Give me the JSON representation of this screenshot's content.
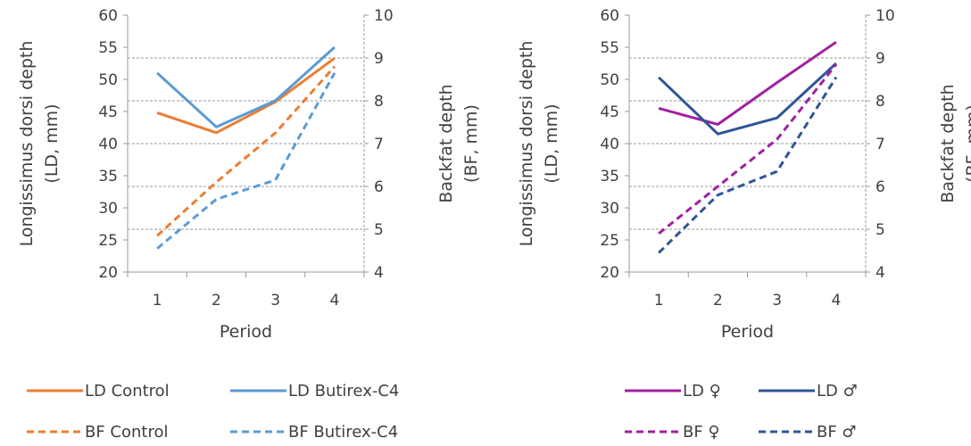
{
  "chart_data": [
    {
      "type": "line",
      "x": [
        1,
        2,
        3,
        4
      ],
      "xlabel": "Period",
      "ylabel_left": [
        "Longissimus dorsi depth",
        "(LD, mm)"
      ],
      "ylabel_right": [
        "Backfat depth",
        "(BF, mm)"
      ],
      "ylim_left": [
        20,
        60
      ],
      "yticks_left": [
        20,
        25,
        30,
        35,
        40,
        45,
        50,
        55,
        60
      ],
      "ylim_right": [
        4,
        10
      ],
      "yticks_right": [
        4,
        5,
        6,
        7,
        8,
        9,
        10
      ],
      "series": [
        {
          "name": "LD Control",
          "axis": "left",
          "style": "solid",
          "color": "#ED7D31",
          "values": [
            44.8,
            41.7,
            46.5,
            53.3
          ]
        },
        {
          "name": "LD Butirex-C4",
          "axis": "left",
          "style": "solid",
          "color": "#5B9BD5",
          "values": [
            51.0,
            42.6,
            46.7,
            55.0
          ]
        },
        {
          "name": "BF Control",
          "axis": "right",
          "style": "dashed",
          "color": "#ED7D31",
          "values": [
            4.85,
            6.1,
            7.25,
            8.8
          ]
        },
        {
          "name": "BF Butirex-C4",
          "axis": "right",
          "style": "dashed",
          "color": "#5B9BD5",
          "values": [
            4.55,
            5.7,
            6.15,
            8.65
          ]
        }
      ],
      "grid": "horizontal dashed at right-axis ticks"
    },
    {
      "type": "line",
      "x": [
        1,
        2,
        3,
        4
      ],
      "xlabel": "Period",
      "ylabel_left": [
        "Longissimus dorsi depth",
        "(LD, mm)"
      ],
      "ylabel_right": [
        "Backfat depth",
        "(BF, mm)"
      ],
      "ylim_left": [
        20,
        60
      ],
      "yticks_left": [
        20,
        25,
        30,
        35,
        40,
        45,
        50,
        55,
        60
      ],
      "ylim_right": [
        4,
        10
      ],
      "yticks_right": [
        4,
        5,
        6,
        7,
        8,
        9,
        10
      ],
      "series": [
        {
          "name": "LD ♀",
          "axis": "left",
          "style": "solid",
          "color": "#A020A0",
          "values": [
            45.5,
            43.0,
            49.5,
            55.8
          ]
        },
        {
          "name": "LD ♂",
          "axis": "left",
          "style": "solid",
          "color": "#2F5597",
          "values": [
            50.3,
            41.5,
            44.0,
            52.5
          ]
        },
        {
          "name": "BF ♀",
          "axis": "right",
          "style": "dashed",
          "color": "#A020A0",
          "values": [
            4.9,
            6.0,
            7.1,
            8.85
          ]
        },
        {
          "name": "BF ♂",
          "axis": "right",
          "style": "dashed",
          "color": "#2F5597",
          "values": [
            4.45,
            5.8,
            6.35,
            8.55
          ]
        }
      ],
      "grid": "horizontal dashed at right-axis ticks"
    }
  ],
  "legends": [
    {
      "items": [
        "LD Control",
        "LD Butirex-C4",
        "BF Control",
        "BF Butirex-C4"
      ]
    },
    {
      "items": [
        "LD ♀",
        "LD ♂",
        "BF ♀",
        "BF ♂"
      ]
    }
  ]
}
